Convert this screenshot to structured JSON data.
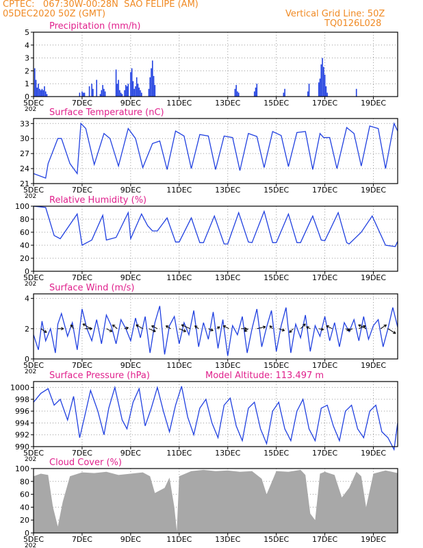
{
  "header": {
    "line1": "CPTEC:   067:30W-00:28N  SAO FELIPE (AM)",
    "line2": "05DEC2020 50Z (GMT)",
    "right1": "Vertical Grid Line: 50Z",
    "right2": "TQ0126L028"
  },
  "colors": {
    "header": "#f08a24",
    "title": "#e0208c",
    "line": "#2040e0",
    "cloud": "#a8a8a8",
    "grid": "#9a9a9a"
  },
  "x_axis": {
    "tick_labels": [
      "5DEC",
      "7DEC",
      "9DEC",
      "11DEC",
      "13DEC",
      "15DEC",
      "17DEC",
      "19DEC"
    ],
    "year_fragment": "202",
    "tick_days": [
      5,
      7,
      9,
      11,
      13,
      15,
      17,
      19
    ],
    "range_days": [
      5,
      20
    ]
  },
  "chart_data": [
    {
      "type": "bar",
      "title": "Precipitation (mm/h)",
      "ylim": [
        0,
        5
      ],
      "yticks": [
        0,
        1,
        2,
        3,
        4,
        5
      ],
      "x": [
        5.05,
        5.1,
        5.15,
        5.2,
        5.25,
        5.3,
        5.35,
        5.4,
        5.45,
        5.5,
        5.55,
        6.9,
        7.0,
        7.05,
        7.1,
        7.3,
        7.4,
        7.45,
        7.6,
        7.75,
        7.8,
        7.85,
        7.9,
        7.95,
        8.4,
        8.45,
        8.5,
        8.55,
        8.6,
        8.65,
        8.75,
        8.8,
        8.85,
        8.9,
        9.0,
        9.05,
        9.1,
        9.15,
        9.2,
        9.25,
        9.3,
        9.35,
        9.4,
        9.45,
        9.75,
        9.8,
        9.85,
        9.9,
        9.95,
        10.0,
        13.3,
        13.35,
        13.4,
        13.45,
        14.1,
        14.15,
        14.2,
        15.3,
        15.35,
        16.3,
        16.35,
        16.75,
        16.8,
        16.85,
        16.9,
        16.95,
        17.0,
        17.05,
        17.1,
        18.3
      ],
      "values": [
        2.2,
        1.3,
        0.7,
        1.0,
        0.6,
        0.5,
        0.6,
        0.5,
        0.8,
        0.4,
        0.2,
        0.3,
        0.4,
        0.3,
        0.3,
        0.8,
        1.0,
        0.6,
        1.3,
        0.2,
        0.5,
        0.9,
        0.6,
        0.4,
        2.1,
        1.0,
        1.3,
        0.5,
        0.3,
        0.2,
        0.5,
        0.9,
        0.8,
        1.0,
        1.9,
        2.2,
        1.2,
        0.6,
        0.8,
        1.5,
        1.0,
        0.7,
        0.5,
        0.3,
        0.6,
        1.5,
        2.2,
        2.8,
        1.6,
        0.9,
        0.6,
        0.9,
        0.4,
        0.3,
        0.4,
        0.7,
        1.0,
        0.3,
        0.6,
        0.4,
        1.0,
        1.1,
        1.4,
        2.5,
        3.0,
        2.3,
        1.7,
        0.8,
        0.3,
        0.6
      ]
    },
    {
      "type": "line",
      "title": "Surface Temperature (nC)",
      "ylim": [
        21,
        34
      ],
      "yticks": [
        21,
        24,
        27,
        30,
        33
      ],
      "x": [
        5,
        5.5,
        5.6,
        5.8,
        6.0,
        6.15,
        6.5,
        6.8,
        6.95,
        7.15,
        7.5,
        7.9,
        8.15,
        8.5,
        8.9,
        9.2,
        9.5,
        9.9,
        10.2,
        10.5,
        10.85,
        11.2,
        11.5,
        11.85,
        12.2,
        12.5,
        12.85,
        13.2,
        13.5,
        13.85,
        14.2,
        14.5,
        14.85,
        15.2,
        15.5,
        15.85,
        16.2,
        16.5,
        16.8,
        16.95,
        17.2,
        17.5,
        17.9,
        18.2,
        18.5,
        18.85,
        19.2,
        19.5,
        19.85,
        20
      ],
      "values": [
        23,
        22.1,
        25,
        27.5,
        30,
        30,
        25,
        23,
        33,
        32,
        24.8,
        31,
        30,
        24.5,
        32,
        30,
        24.2,
        29,
        29.5,
        23.8,
        31.5,
        30.5,
        24,
        30.8,
        30.5,
        23.8,
        30.5,
        30.2,
        23.6,
        31,
        30.4,
        24.2,
        31.4,
        30.6,
        24.4,
        31.2,
        31.4,
        23.8,
        31,
        30.2,
        30.2,
        24,
        32.2,
        31,
        24.5,
        32.5,
        32,
        24,
        33,
        31.5
      ]
    },
    {
      "type": "line",
      "title": "Relative Humidity (%)",
      "ylim": [
        0,
        100
      ],
      "yticks": [
        0,
        20,
        40,
        60,
        80,
        100
      ],
      "x": [
        5,
        5.5,
        5.85,
        6.1,
        6.8,
        7.0,
        7.4,
        7.85,
        8.0,
        8.4,
        8.9,
        9.0,
        9.45,
        9.7,
        9.9,
        10.1,
        10.5,
        10.85,
        11.0,
        11.5,
        11.85,
        12.0,
        12.45,
        12.85,
        13.0,
        13.45,
        13.85,
        14.0,
        14.5,
        14.85,
        15.0,
        15.5,
        15.85,
        16.0,
        16.5,
        16.85,
        17.0,
        17.55,
        17.9,
        18.0,
        18.5,
        18.95,
        19.5,
        19.9,
        20
      ],
      "values": [
        100,
        98,
        55,
        50,
        88,
        40,
        48,
        86,
        48,
        52,
        90,
        50,
        88,
        70,
        62,
        62,
        82,
        45,
        45,
        82,
        44,
        44,
        85,
        42,
        42,
        90,
        45,
        44,
        92,
        44,
        44,
        88,
        44,
        44,
        85,
        48,
        47,
        90,
        44,
        42,
        60,
        85,
        40,
        38,
        46
      ]
    },
    {
      "type": "line",
      "title": "Surface Wind (m/s)",
      "ylim": [
        0,
        4.3
      ],
      "yticks": [
        0,
        2,
        4
      ],
      "x": [
        5,
        5.2,
        5.35,
        5.5,
        5.7,
        5.9,
        6.0,
        6.15,
        6.4,
        6.6,
        6.8,
        7.0,
        7.2,
        7.4,
        7.6,
        7.8,
        8.0,
        8.2,
        8.4,
        8.6,
        8.8,
        9.0,
        9.2,
        9.4,
        9.6,
        9.8,
        10.0,
        10.2,
        10.4,
        10.6,
        10.8,
        11.0,
        11.2,
        11.4,
        11.6,
        11.8,
        12.0,
        12.2,
        12.4,
        12.6,
        12.8,
        13.0,
        13.2,
        13.4,
        13.6,
        13.8,
        14.0,
        14.2,
        14.4,
        14.6,
        14.8,
        15.0,
        15.2,
        15.4,
        15.6,
        15.8,
        16.0,
        16.2,
        16.4,
        16.6,
        16.8,
        17.0,
        17.2,
        17.4,
        17.6,
        17.8,
        18.0,
        18.2,
        18.4,
        18.6,
        18.8,
        19.0,
        19.2,
        19.4,
        19.6,
        19.8,
        20
      ],
      "values": [
        1.6,
        0.6,
        2.5,
        1.2,
        2.0,
        0.4,
        2.3,
        3.0,
        1.5,
        2.4,
        0.6,
        3.3,
        2.0,
        1.2,
        2.6,
        1.0,
        2.9,
        2.2,
        1.0,
        2.6,
        2.0,
        1.2,
        2.7,
        1.4,
        2.8,
        0.4,
        2.4,
        3.5,
        0.3,
        2.2,
        2.8,
        1.0,
        2.4,
        1.6,
        3.2,
        0.8,
        2.4,
        1.3,
        3.1,
        0.7,
        2.6,
        0.2,
        2.2,
        1.6,
        2.8,
        0.4,
        2.0,
        3.3,
        0.8,
        2.1,
        3.2,
        0.5,
        2.2,
        3.4,
        0.4,
        2.3,
        1.4,
        2.9,
        0.5,
        2.2,
        1.5,
        2.8,
        1.2,
        2.4,
        0.8,
        2.4,
        1.8,
        2.6,
        1.2,
        2.8,
        1.3,
        2.2,
        2.6,
        0.8,
        2.0,
        3.4,
        2.1
      ],
      "vectors": {
        "x": [
          5.3,
          6.0,
          6.65,
          7.1,
          7.35,
          8.0,
          8.45,
          8.75,
          9.5,
          9.75,
          10.1,
          10.65,
          11.0,
          11.45,
          11.8,
          12.2,
          12.55,
          13.05,
          13.55,
          13.85,
          14.2,
          14.85,
          15.1,
          15.7,
          16.0,
          16.4,
          16.75,
          17.3,
          17.85,
          18.15,
          18.4,
          18.7,
          19.3,
          19.6
        ],
        "u": [
          0.6,
          0.6,
          -0.3,
          0.8,
          -0.8,
          0.6,
          -0.5,
          0.4,
          -0.7,
          0.7,
          -0.6,
          -0.5,
          0.7,
          -0.9,
          -0.4,
          0.5,
          0.3,
          -0.6,
          0.6,
          -0.4,
          0.9,
          -0.3,
          0.6,
          -0.4,
          0.5,
          -0.4,
          0.5,
          -0.6,
          0.4,
          -0.5,
          0.7,
          -0.8,
          0.6,
          0.8
        ],
        "v": [
          -0.4,
          0.0,
          0.4,
          0.0,
          0.5,
          -0.3,
          0.4,
          0.1,
          0.4,
          -0.3,
          0.3,
          0.3,
          -0.3,
          0.4,
          0.3,
          -0.2,
          0.2,
          0.3,
          0.0,
          -0.3,
          0.2,
          0.3,
          -0.2,
          -0.4,
          0.5,
          0.2,
          -0.1,
          0.3,
          -0.2,
          -0.2,
          0.3,
          0.4,
          0.4,
          -0.5
        ]
      }
    },
    {
      "type": "line",
      "title": "Surface Pressure (hPa)",
      "annotation": "Model Altitude: 113.497 m",
      "ylim": [
        990,
        1001
      ],
      "yticks": [
        990,
        992,
        994,
        996,
        998,
        1000
      ],
      "x": [
        5,
        5.3,
        5.6,
        5.85,
        6.1,
        6.4,
        6.65,
        6.9,
        7.1,
        7.35,
        7.65,
        7.9,
        8.1,
        8.35,
        8.65,
        8.85,
        9.1,
        9.35,
        9.6,
        9.85,
        10.1,
        10.35,
        10.6,
        10.85,
        11.1,
        11.35,
        11.6,
        11.85,
        12.1,
        12.35,
        12.6,
        12.85,
        13.1,
        13.35,
        13.6,
        13.85,
        14.1,
        14.35,
        14.6,
        14.85,
        15.1,
        15.35,
        15.6,
        15.85,
        16.1,
        16.35,
        16.6,
        16.85,
        17.1,
        17.35,
        17.6,
        17.85,
        18.1,
        18.35,
        18.6,
        18.85,
        19.1,
        19.35,
        19.6,
        19.85,
        20
      ],
      "values": [
        997.5,
        999.0,
        999.8,
        997.0,
        998.0,
        994.5,
        998.5,
        991.5,
        995.0,
        999.5,
        996.0,
        992.0,
        996.5,
        1000.0,
        994.5,
        993.0,
        997.5,
        999.8,
        993.5,
        996.5,
        1000.0,
        996.0,
        992.5,
        997.0,
        1000.2,
        995.0,
        992.0,
        996.5,
        998.0,
        994.0,
        991.5,
        997.0,
        998.2,
        993.5,
        991.0,
        996.5,
        997.5,
        993.0,
        990.5,
        996.0,
        997.5,
        993.0,
        991.0,
        996.0,
        998.0,
        993.0,
        991.0,
        996.5,
        997.0,
        993.5,
        991.0,
        996.0,
        997.0,
        993.0,
        991.5,
        996.0,
        997.0,
        992.5,
        991.5,
        989.5,
        994.0
      ]
    },
    {
      "type": "area",
      "title": "Cloud Cover (%)",
      "ylim": [
        0,
        100
      ],
      "yticks": [
        0,
        20,
        40,
        60,
        80,
        100
      ],
      "x": [
        5.0,
        5.3,
        5.6,
        5.8,
        6.0,
        6.2,
        6.5,
        7.0,
        7.5,
        8.0,
        8.5,
        9.0,
        9.5,
        9.8,
        10.0,
        10.4,
        10.6,
        10.8,
        10.9,
        11.0,
        11.5,
        12.0,
        12.5,
        13.0,
        13.5,
        14.0,
        14.4,
        14.6,
        14.8,
        15.0,
        15.5,
        16.0,
        16.2,
        16.4,
        16.6,
        16.8,
        17.0,
        17.4,
        17.7,
        18.0,
        18.3,
        18.5,
        18.7,
        19.0,
        19.5,
        20.0
      ],
      "values": [
        88,
        92,
        90,
        40,
        10,
        48,
        88,
        94,
        93,
        95,
        90,
        92,
        94,
        88,
        62,
        70,
        86,
        40,
        3,
        88,
        96,
        98,
        96,
        97,
        95,
        96,
        84,
        60,
        78,
        96,
        95,
        98,
        90,
        30,
        20,
        92,
        95,
        90,
        55,
        70,
        95,
        88,
        40,
        92,
        97,
        93
      ]
    }
  ]
}
